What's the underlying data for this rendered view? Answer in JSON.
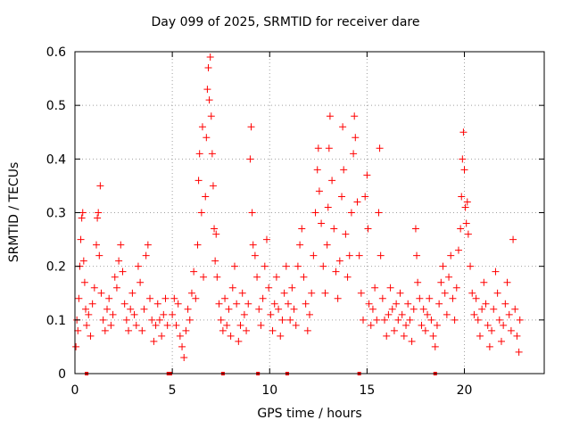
{
  "chart_data": {
    "type": "scatter",
    "title": "Day 099 of 2025, SRMTID for receiver dare",
    "xlabel": "GPS time / hours",
    "ylabel": "SRMTID / TECUs",
    "xlim": [
      0,
      24.1
    ],
    "ylim": [
      0,
      0.6
    ],
    "xticks": [
      0,
      5,
      10,
      15,
      20
    ],
    "yticks": [
      0,
      0.1,
      0.2,
      0.3,
      0.4,
      0.5,
      0.6
    ],
    "xtick_labels": [
      "0",
      "5",
      "10",
      "15",
      "20"
    ],
    "ytick_labels": [
      "0",
      "0.1",
      "0.2",
      "0.3",
      "0.4",
      "0.5",
      "0.6"
    ],
    "grid": true,
    "marker": "+",
    "series_color": "#ff0000",
    "series": [
      {
        "name": "SRMTID",
        "points": [
          [
            0.05,
            0.05
          ],
          [
            0.1,
            0.1
          ],
          [
            0.15,
            0.08
          ],
          [
            0.2,
            0.14
          ],
          [
            0.25,
            0.2
          ],
          [
            0.3,
            0.25
          ],
          [
            0.35,
            0.29
          ],
          [
            0.4,
            0.3
          ],
          [
            0.45,
            0.21
          ],
          [
            0.5,
            0.17
          ],
          [
            0.55,
            0.12
          ],
          [
            0.6,
            0.09
          ],
          [
            0.7,
            0.11
          ],
          [
            0.8,
            0.07
          ],
          [
            0.9,
            0.13
          ],
          [
            1.0,
            0.16
          ],
          [
            1.1,
            0.24
          ],
          [
            1.15,
            0.29
          ],
          [
            1.2,
            0.3
          ],
          [
            1.25,
            0.22
          ],
          [
            1.3,
            0.35
          ],
          [
            1.35,
            0.15
          ],
          [
            1.45,
            0.1
          ],
          [
            1.55,
            0.08
          ],
          [
            1.65,
            0.12
          ],
          [
            1.75,
            0.14
          ],
          [
            1.85,
            0.09
          ],
          [
            1.95,
            0.11
          ],
          [
            2.05,
            0.18
          ],
          [
            2.15,
            0.16
          ],
          [
            2.25,
            0.21
          ],
          [
            2.35,
            0.24
          ],
          [
            2.45,
            0.19
          ],
          [
            2.55,
            0.13
          ],
          [
            2.65,
            0.1
          ],
          [
            2.75,
            0.08
          ],
          [
            2.85,
            0.12
          ],
          [
            2.95,
            0.15
          ],
          [
            3.05,
            0.11
          ],
          [
            3.15,
            0.09
          ],
          [
            3.25,
            0.2
          ],
          [
            3.35,
            0.17
          ],
          [
            3.45,
            0.08
          ],
          [
            3.55,
            0.12
          ],
          [
            3.65,
            0.22
          ],
          [
            3.75,
            0.24
          ],
          [
            3.85,
            0.14
          ],
          [
            3.95,
            0.1
          ],
          [
            4.05,
            0.06
          ],
          [
            4.15,
            0.09
          ],
          [
            4.25,
            0.13
          ],
          [
            4.35,
            0.1
          ],
          [
            4.45,
            0.07
          ],
          [
            4.55,
            0.11
          ],
          [
            4.65,
            0.14
          ],
          [
            4.75,
            0.09
          ],
          [
            5.0,
            0.11
          ],
          [
            5.1,
            0.14
          ],
          [
            5.2,
            0.09
          ],
          [
            5.3,
            0.13
          ],
          [
            5.4,
            0.07
          ],
          [
            5.5,
            0.05
          ],
          [
            5.6,
            0.03
          ],
          [
            5.7,
            0.08
          ],
          [
            5.8,
            0.12
          ],
          [
            5.9,
            0.1
          ],
          [
            6.0,
            0.15
          ],
          [
            6.1,
            0.19
          ],
          [
            6.2,
            0.14
          ],
          [
            6.3,
            0.24
          ],
          [
            6.35,
            0.36
          ],
          [
            6.4,
            0.41
          ],
          [
            6.5,
            0.3
          ],
          [
            6.55,
            0.46
          ],
          [
            6.6,
            0.18
          ],
          [
            6.7,
            0.33
          ],
          [
            6.75,
            0.44
          ],
          [
            6.8,
            0.53
          ],
          [
            6.85,
            0.57
          ],
          [
            6.9,
            0.51
          ],
          [
            6.95,
            0.59
          ],
          [
            7.0,
            0.48
          ],
          [
            7.05,
            0.41
          ],
          [
            7.1,
            0.35
          ],
          [
            7.15,
            0.27
          ],
          [
            7.2,
            0.21
          ],
          [
            7.25,
            0.26
          ],
          [
            7.3,
            0.18
          ],
          [
            7.4,
            0.13
          ],
          [
            7.5,
            0.1
          ],
          [
            7.6,
            0.08
          ],
          [
            7.7,
            0.14
          ],
          [
            7.8,
            0.09
          ],
          [
            7.9,
            0.12
          ],
          [
            8.0,
            0.07
          ],
          [
            8.1,
            0.16
          ],
          [
            8.2,
            0.2
          ],
          [
            8.3,
            0.13
          ],
          [
            8.4,
            0.06
          ],
          [
            8.5,
            0.09
          ],
          [
            8.6,
            0.15
          ],
          [
            8.7,
            0.11
          ],
          [
            8.8,
            0.08
          ],
          [
            8.9,
            0.13
          ],
          [
            9.0,
            0.4
          ],
          [
            9.05,
            0.46
          ],
          [
            9.1,
            0.3
          ],
          [
            9.15,
            0.24
          ],
          [
            9.25,
            0.22
          ],
          [
            9.35,
            0.18
          ],
          [
            9.45,
            0.12
          ],
          [
            9.55,
            0.09
          ],
          [
            9.65,
            0.14
          ],
          [
            9.75,
            0.2
          ],
          [
            9.85,
            0.25
          ],
          [
            9.95,
            0.16
          ],
          [
            10.05,
            0.11
          ],
          [
            10.15,
            0.08
          ],
          [
            10.25,
            0.13
          ],
          [
            10.35,
            0.18
          ],
          [
            10.45,
            0.12
          ],
          [
            10.55,
            0.07
          ],
          [
            10.65,
            0.1
          ],
          [
            10.75,
            0.15
          ],
          [
            10.85,
            0.2
          ],
          [
            10.95,
            0.13
          ],
          [
            11.05,
            0.1
          ],
          [
            11.15,
            0.16
          ],
          [
            11.25,
            0.12
          ],
          [
            11.35,
            0.09
          ],
          [
            11.45,
            0.2
          ],
          [
            11.55,
            0.24
          ],
          [
            11.65,
            0.27
          ],
          [
            11.75,
            0.18
          ],
          [
            11.85,
            0.13
          ],
          [
            11.95,
            0.08
          ],
          [
            12.05,
            0.11
          ],
          [
            12.15,
            0.15
          ],
          [
            12.25,
            0.22
          ],
          [
            12.35,
            0.3
          ],
          [
            12.45,
            0.38
          ],
          [
            12.5,
            0.42
          ],
          [
            12.55,
            0.34
          ],
          [
            12.65,
            0.28
          ],
          [
            12.75,
            0.2
          ],
          [
            12.85,
            0.15
          ],
          [
            12.95,
            0.24
          ],
          [
            13.0,
            0.31
          ],
          [
            13.05,
            0.42
          ],
          [
            13.1,
            0.48
          ],
          [
            13.2,
            0.36
          ],
          [
            13.3,
            0.27
          ],
          [
            13.4,
            0.19
          ],
          [
            13.5,
            0.14
          ],
          [
            13.6,
            0.21
          ],
          [
            13.7,
            0.33
          ],
          [
            13.75,
            0.46
          ],
          [
            13.8,
            0.38
          ],
          [
            13.9,
            0.26
          ],
          [
            14.0,
            0.18
          ],
          [
            14.1,
            0.22
          ],
          [
            14.2,
            0.3
          ],
          [
            14.3,
            0.41
          ],
          [
            14.35,
            0.48
          ],
          [
            14.4,
            0.44
          ],
          [
            14.5,
            0.32
          ],
          [
            14.6,
            0.22
          ],
          [
            14.7,
            0.15
          ],
          [
            14.8,
            0.1
          ],
          [
            14.9,
            0.33
          ],
          [
            15.0,
            0.37
          ],
          [
            15.05,
            0.27
          ],
          [
            15.1,
            0.13
          ],
          [
            15.2,
            0.09
          ],
          [
            15.3,
            0.12
          ],
          [
            15.4,
            0.16
          ],
          [
            15.5,
            0.1
          ],
          [
            15.6,
            0.3
          ],
          [
            15.65,
            0.42
          ],
          [
            15.7,
            0.22
          ],
          [
            15.8,
            0.14
          ],
          [
            15.9,
            0.1
          ],
          [
            16.0,
            0.07
          ],
          [
            16.1,
            0.11
          ],
          [
            16.2,
            0.16
          ],
          [
            16.3,
            0.12
          ],
          [
            16.4,
            0.08
          ],
          [
            16.5,
            0.13
          ],
          [
            16.6,
            0.1
          ],
          [
            16.7,
            0.15
          ],
          [
            16.8,
            0.11
          ],
          [
            16.9,
            0.07
          ],
          [
            17.0,
            0.09
          ],
          [
            17.1,
            0.13
          ],
          [
            17.2,
            0.1
          ],
          [
            17.3,
            0.06
          ],
          [
            17.4,
            0.12
          ],
          [
            17.5,
            0.27
          ],
          [
            17.55,
            0.22
          ],
          [
            17.6,
            0.17
          ],
          [
            17.7,
            0.14
          ],
          [
            17.8,
            0.09
          ],
          [
            17.9,
            0.12
          ],
          [
            18.0,
            0.08
          ],
          [
            18.1,
            0.11
          ],
          [
            18.2,
            0.14
          ],
          [
            18.3,
            0.1
          ],
          [
            18.4,
            0.07
          ],
          [
            18.5,
            0.05
          ],
          [
            18.6,
            0.09
          ],
          [
            18.7,
            0.13
          ],
          [
            18.8,
            0.17
          ],
          [
            18.9,
            0.2
          ],
          [
            19.0,
            0.15
          ],
          [
            19.1,
            0.11
          ],
          [
            19.2,
            0.18
          ],
          [
            19.3,
            0.22
          ],
          [
            19.4,
            0.14
          ],
          [
            19.5,
            0.1
          ],
          [
            19.6,
            0.16
          ],
          [
            19.7,
            0.23
          ],
          [
            19.8,
            0.27
          ],
          [
            19.85,
            0.33
          ],
          [
            19.9,
            0.4
          ],
          [
            19.95,
            0.45
          ],
          [
            20.0,
            0.38
          ],
          [
            20.05,
            0.31
          ],
          [
            20.1,
            0.28
          ],
          [
            20.15,
            0.32
          ],
          [
            20.2,
            0.26
          ],
          [
            20.3,
            0.2
          ],
          [
            20.4,
            0.15
          ],
          [
            20.5,
            0.11
          ],
          [
            20.6,
            0.14
          ],
          [
            20.7,
            0.1
          ],
          [
            20.8,
            0.07
          ],
          [
            20.9,
            0.12
          ],
          [
            21.0,
            0.17
          ],
          [
            21.1,
            0.13
          ],
          [
            21.2,
            0.09
          ],
          [
            21.3,
            0.05
          ],
          [
            21.4,
            0.08
          ],
          [
            21.5,
            0.12
          ],
          [
            21.6,
            0.19
          ],
          [
            21.7,
            0.15
          ],
          [
            21.8,
            0.1
          ],
          [
            21.9,
            0.06
          ],
          [
            22.0,
            0.09
          ],
          [
            22.1,
            0.13
          ],
          [
            22.2,
            0.17
          ],
          [
            22.3,
            0.11
          ],
          [
            22.4,
            0.08
          ],
          [
            22.5,
            0.25
          ],
          [
            22.6,
            0.12
          ],
          [
            22.7,
            0.07
          ],
          [
            22.8,
            0.04
          ],
          [
            22.85,
            0.1
          ]
        ]
      }
    ],
    "baseline_markers": [
      0.6,
      4.8,
      4.9,
      7.6,
      9.4,
      10.9,
      14.6,
      18.5
    ]
  }
}
